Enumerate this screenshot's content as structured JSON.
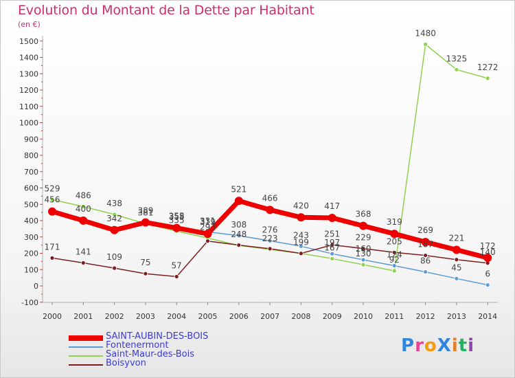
{
  "header": {
    "title": "Evolution du Montant de la Dette par Habitant",
    "unit": "(en €)"
  },
  "chart_data": {
    "type": "line",
    "title": "Evolution du Montant de la Dette par Habitant",
    "ylabel": "(en €)",
    "xlabel": "",
    "ylim": [
      -100,
      1500
    ],
    "y_ticks": [
      -100,
      0,
      100,
      200,
      300,
      400,
      500,
      600,
      700,
      800,
      900,
      1000,
      1100,
      1200,
      1300,
      1400,
      1500
    ],
    "x": [
      "2000",
      "2001",
      "2002",
      "2003",
      "2004",
      "2005",
      "2006",
      "2007",
      "2008",
      "2009",
      "2010",
      "2011",
      "2012",
      "2013",
      "2014"
    ],
    "grid": false,
    "legend_position": "bottom-left",
    "series": [
      {
        "name": "SAINT-AUBIN-DES-BOIS",
        "color": "#ee0000",
        "values": [
          456,
          400,
          342,
          389,
          355,
          319,
          521,
          466,
          420,
          417,
          368,
          319,
          269,
          221,
          172
        ],
        "labels": [
          "456",
          "400",
          "342",
          "389",
          "355",
          "319",
          "521",
          "466",
          "420",
          "417",
          "368",
          "319",
          "269",
          "221",
          "172"
        ]
      },
      {
        "name": "Fontenermont",
        "color": "#5b9bd5",
        "values": [
          null,
          null,
          null,
          null,
          358,
          331,
          308,
          276,
          243,
          197,
          160,
          124,
          86,
          45,
          6
        ],
        "labels": [
          "",
          "",
          "",
          "",
          "358",
          "331",
          "308",
          "276",
          "243",
          "197",
          "160",
          "124",
          "86",
          "45",
          "6"
        ]
      },
      {
        "name": "Saint-Maur-des-Bois",
        "color": "#8fd14f",
        "values": [
          529,
          486,
          438,
          381,
          335,
          293,
          248,
          223,
          199,
          167,
          130,
          92,
          1480,
          1325,
          1272
        ],
        "labels": [
          "529",
          "486",
          "438",
          "381",
          "335",
          "293",
          "248",
          "223",
          "199",
          "167",
          "130",
          "92",
          "1480",
          "1325",
          "1272"
        ]
      },
      {
        "name": "Boisyvon",
        "color": "#7b1e1e",
        "values": [
          171,
          141,
          109,
          75,
          57,
          275,
          250,
          228,
          199,
          251,
          229,
          205,
          187,
          161,
          140
        ],
        "labels": [
          "171",
          "141",
          "109",
          "75",
          "57",
          "",
          "",
          "",
          "",
          "251",
          "229",
          "205",
          "187",
          "",
          "140"
        ]
      }
    ]
  },
  "legend": {
    "items": [
      {
        "label": "SAINT-AUBIN-DES-BOIS",
        "color": "#ee0000"
      },
      {
        "label": "Fontenermont",
        "color": "#5b9bd5"
      },
      {
        "label": "Saint-Maur-des-Bois",
        "color": "#8fd14f"
      },
      {
        "label": "Boisyvon",
        "color": "#7b1e1e"
      }
    ]
  },
  "logo": {
    "text": "ProXiti",
    "letters": [
      "P",
      "r",
      "o",
      "X",
      "i",
      "t",
      "i"
    ],
    "colors": [
      "#2e86de",
      "#e84393",
      "#f39c12",
      "#2e86de",
      "#e67e22",
      "#27ae60",
      "#8e44ad"
    ]
  }
}
